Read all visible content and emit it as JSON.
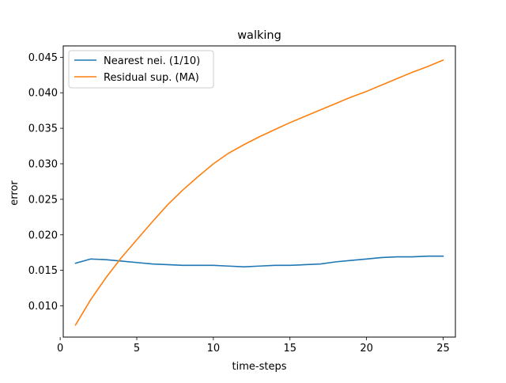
{
  "chart_data": {
    "type": "line",
    "title": "walking",
    "xlabel": "time-steps",
    "ylabel": "error",
    "xlim": [
      0.2,
      25.8
    ],
    "ylim": [
      0.0056,
      0.0466
    ],
    "xticks": [
      0,
      5,
      10,
      15,
      20,
      25
    ],
    "yticks": [
      0.01,
      0.015,
      0.02,
      0.025,
      0.03,
      0.035,
      0.04,
      0.045
    ],
    "xtick_labels": [
      "0",
      "5",
      "10",
      "15",
      "20",
      "25"
    ],
    "ytick_labels": [
      "0.010",
      "0.015",
      "0.020",
      "0.025",
      "0.030",
      "0.035",
      "0.040",
      "0.045"
    ],
    "grid": false,
    "legend_position": "upper left",
    "x": [
      1,
      2,
      3,
      4,
      5,
      6,
      7,
      8,
      9,
      10,
      11,
      12,
      13,
      14,
      15,
      16,
      17,
      18,
      19,
      20,
      21,
      22,
      23,
      24,
      25
    ],
    "series": [
      {
        "name": "Nearest nei. (1/10)",
        "color": "#1f77b4",
        "values": [
          0.016,
          0.0166,
          0.0165,
          0.0163,
          0.0161,
          0.0159,
          0.0158,
          0.0157,
          0.0157,
          0.0157,
          0.0156,
          0.0155,
          0.0156,
          0.0157,
          0.0157,
          0.0158,
          0.0159,
          0.0162,
          0.0164,
          0.0166,
          0.0168,
          0.0169,
          0.0169,
          0.017,
          0.017
        ]
      },
      {
        "name": "Residual sup. (MA)",
        "color": "#ff7f0e",
        "values": [
          0.0073,
          0.0109,
          0.014,
          0.0168,
          0.0193,
          0.0218,
          0.0242,
          0.0263,
          0.0282,
          0.03,
          0.0315,
          0.0327,
          0.0338,
          0.0348,
          0.0358,
          0.0367,
          0.0376,
          0.0385,
          0.0394,
          0.0402,
          0.0411,
          0.042,
          0.0429,
          0.0437,
          0.0446
        ]
      }
    ]
  }
}
